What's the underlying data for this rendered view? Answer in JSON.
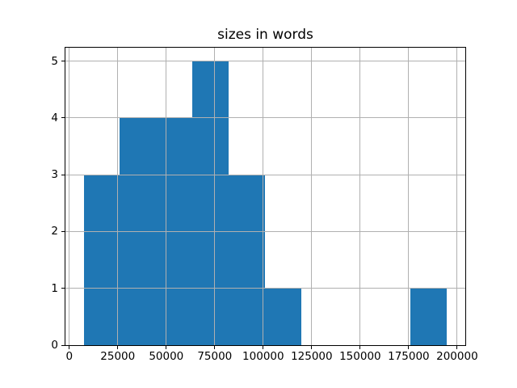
{
  "figure": {
    "background_color": "#ffffff"
  },
  "chart_data": {
    "type": "bar",
    "subtype": "histogram",
    "title": "sizes in words",
    "xlabel": "",
    "ylabel": "",
    "legend": null,
    "grid": true,
    "bin_edges": [
      7400,
      26120,
      44840,
      63560,
      82280,
      101000,
      119720,
      138440,
      157160,
      175880,
      194600
    ],
    "counts": [
      3,
      4,
      4,
      5,
      3,
      1,
      0,
      0,
      0,
      1
    ],
    "xlim": [
      -2400,
      204200
    ],
    "ylim": [
      0,
      5.25
    ],
    "xticks": [
      0,
      25000,
      50000,
      75000,
      100000,
      125000,
      150000,
      175000,
      200000
    ],
    "xtick_labels": [
      "0",
      "25000",
      "50000",
      "75000",
      "100000",
      "125000",
      "150000",
      "175000",
      "200000"
    ],
    "yticks": [
      0,
      1,
      2,
      3,
      4,
      5
    ],
    "ytick_labels": [
      "0",
      "1",
      "2",
      "3",
      "4",
      "5"
    ],
    "bar_color": "#1f77b4",
    "grid_color": "#b0b0b0",
    "spine_color": "#000000",
    "text_color": "#000000"
  }
}
